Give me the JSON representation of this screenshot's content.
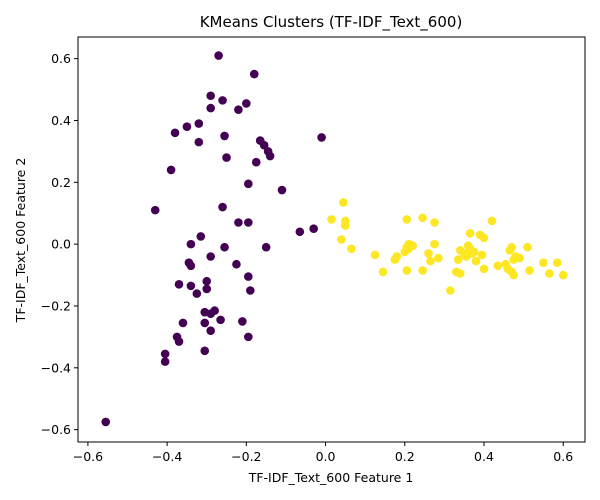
{
  "chart_data": {
    "type": "scatter",
    "title": "KMeans Clusters (TF-IDF_Text_600)",
    "xlabel": "TF-IDF_Text_600 Feature 1",
    "ylabel": "TF-IDF_Text_600 Feature 2",
    "xlim": [
      -0.625,
      0.655
    ],
    "ylim": [
      -0.64,
      0.67
    ],
    "xticks": [
      -0.6,
      -0.4,
      -0.2,
      0.0,
      0.2,
      0.4,
      0.6
    ],
    "xtick_labels": [
      "−0.6",
      "−0.4",
      "−0.2",
      "0.0",
      "0.2",
      "0.4",
      "0.6"
    ],
    "yticks": [
      -0.6,
      -0.4,
      -0.2,
      0.0,
      0.2,
      0.4,
      0.6
    ],
    "ytick_labels": [
      "−0.6",
      "−0.4",
      "−0.2",
      "0.0",
      "0.2",
      "0.4",
      "0.6"
    ],
    "grid": false,
    "legend": "none",
    "series": [
      {
        "color": "#440154",
        "points": [
          [
            -0.27,
            0.61
          ],
          [
            -0.18,
            0.55
          ],
          [
            -0.29,
            0.48
          ],
          [
            -0.26,
            0.465
          ],
          [
            -0.29,
            0.44
          ],
          [
            -0.2,
            0.455
          ],
          [
            -0.22,
            0.435
          ],
          [
            -0.32,
            0.39
          ],
          [
            -0.35,
            0.38
          ],
          [
            -0.38,
            0.36
          ],
          [
            -0.255,
            0.35
          ],
          [
            -0.32,
            0.33
          ],
          [
            -0.165,
            0.335
          ],
          [
            -0.155,
            0.32
          ],
          [
            -0.145,
            0.3
          ],
          [
            -0.14,
            0.285
          ],
          [
            -0.25,
            0.28
          ],
          [
            -0.175,
            0.265
          ],
          [
            -0.01,
            0.345
          ],
          [
            -0.39,
            0.24
          ],
          [
            -0.195,
            0.195
          ],
          [
            -0.11,
            0.175
          ],
          [
            -0.26,
            0.12
          ],
          [
            -0.43,
            0.11
          ],
          [
            -0.22,
            0.07
          ],
          [
            -0.195,
            0.07
          ],
          [
            -0.065,
            0.04
          ],
          [
            -0.03,
            0.05
          ],
          [
            -0.315,
            0.025
          ],
          [
            -0.34,
            0.0
          ],
          [
            -0.255,
            -0.01
          ],
          [
            -0.15,
            -0.01
          ],
          [
            -0.345,
            -0.06
          ],
          [
            -0.34,
            -0.07
          ],
          [
            -0.225,
            -0.065
          ],
          [
            -0.195,
            -0.105
          ],
          [
            -0.29,
            -0.04
          ],
          [
            -0.3,
            -0.12
          ],
          [
            -0.37,
            -0.13
          ],
          [
            -0.34,
            -0.135
          ],
          [
            -0.3,
            -0.145
          ],
          [
            -0.325,
            -0.16
          ],
          [
            -0.19,
            -0.15
          ],
          [
            -0.305,
            -0.22
          ],
          [
            -0.28,
            -0.215
          ],
          [
            -0.29,
            -0.225
          ],
          [
            -0.305,
            -0.255
          ],
          [
            -0.265,
            -0.245
          ],
          [
            -0.36,
            -0.255
          ],
          [
            -0.21,
            -0.25
          ],
          [
            -0.29,
            -0.28
          ],
          [
            -0.195,
            -0.3
          ],
          [
            -0.375,
            -0.3
          ],
          [
            -0.37,
            -0.315
          ],
          [
            -0.305,
            -0.345
          ],
          [
            -0.405,
            -0.355
          ],
          [
            -0.405,
            -0.38
          ],
          [
            -0.555,
            -0.575
          ]
        ]
      },
      {
        "color": "#fde725",
        "points": [
          [
            0.045,
            0.135
          ],
          [
            0.015,
            0.08
          ],
          [
            0.05,
            0.075
          ],
          [
            0.05,
            0.06
          ],
          [
            0.04,
            0.015
          ],
          [
            0.065,
            -0.015
          ],
          [
            0.125,
            -0.035
          ],
          [
            0.145,
            -0.09
          ],
          [
            0.18,
            -0.04
          ],
          [
            0.175,
            -0.05
          ],
          [
            0.2,
            -0.025
          ],
          [
            0.205,
            -0.01
          ],
          [
            0.21,
            0.0
          ],
          [
            0.21,
            -0.015
          ],
          [
            0.22,
            -0.005
          ],
          [
            0.205,
            0.08
          ],
          [
            0.245,
            0.085
          ],
          [
            0.275,
            0.07
          ],
          [
            0.26,
            -0.03
          ],
          [
            0.275,
            0.0
          ],
          [
            0.265,
            -0.055
          ],
          [
            0.285,
            -0.045
          ],
          [
            0.245,
            -0.085
          ],
          [
            0.205,
            -0.085
          ],
          [
            0.315,
            -0.15
          ],
          [
            0.33,
            -0.09
          ],
          [
            0.34,
            -0.095
          ],
          [
            0.335,
            -0.05
          ],
          [
            0.34,
            -0.02
          ],
          [
            0.35,
            -0.03
          ],
          [
            0.355,
            -0.04
          ],
          [
            0.36,
            -0.005
          ],
          [
            0.365,
            -0.015
          ],
          [
            0.37,
            -0.03
          ],
          [
            0.375,
            -0.025
          ],
          [
            0.38,
            -0.055
          ],
          [
            0.365,
            0.035
          ],
          [
            0.39,
            0.03
          ],
          [
            0.4,
            0.02
          ],
          [
            0.395,
            -0.035
          ],
          [
            0.4,
            -0.08
          ],
          [
            0.42,
            0.075
          ],
          [
            0.435,
            -0.07
          ],
          [
            0.455,
            -0.065
          ],
          [
            0.46,
            -0.08
          ],
          [
            0.465,
            -0.02
          ],
          [
            0.47,
            -0.01
          ],
          [
            0.475,
            -0.05
          ],
          [
            0.48,
            -0.04
          ],
          [
            0.47,
            -0.09
          ],
          [
            0.475,
            -0.1
          ],
          [
            0.49,
            -0.045
          ],
          [
            0.51,
            -0.01
          ],
          [
            0.515,
            -0.085
          ],
          [
            0.55,
            -0.06
          ],
          [
            0.565,
            -0.095
          ],
          [
            0.585,
            -0.06
          ],
          [
            0.6,
            -0.1
          ]
        ]
      }
    ]
  }
}
